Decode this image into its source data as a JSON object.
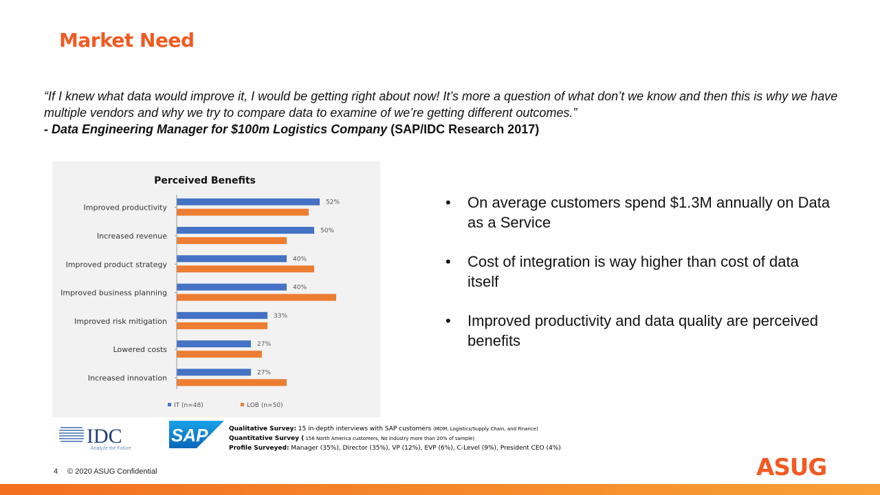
{
  "slide": {
    "title": "Market Need",
    "quote_text": "“If I knew what data would improve it, I would be getting right about now!  It’s more a question of what don’t we know and then this is why we have multiple vendors and why we try to compare data to examine of we’re getting different outcomes.”",
    "attribution_role": "- Data Engineering Manager for $100m Logistics Company",
    "attribution_source": " (SAP/IDC Research 2017)",
    "bullets": [
      "On average customers spend $1.3M annually on Data as a Service",
      "Cost of integration is way higher than cost of data itself",
      "Improved productivity and data quality are perceived benefits"
    ],
    "survey": {
      "qual_label": "Qualitative Survey:",
      "qual_text": " 15 in-depth interviews with SAP customers ",
      "qual_small": "(MDM, Logistics/Supply Chain, and Finance)",
      "quant_label": "Quantitative Survey (",
      "quant_small": " 156 North America  customers, No industry more than 20% of sample)",
      "profile_label": "Profile Surveyed:",
      "profile_text": " Manager (35%), Director (35%), VP (12%),  EVP (6%),  C-Level (9%),  President CEO (4%)"
    },
    "logos": {
      "idc_text": "IDC",
      "idc_tagline": "Analyze the Future",
      "sap_text": "SAP",
      "asug_text": "ASUG"
    },
    "footer": {
      "page": "4",
      "text": "© 2020 ASUG  Confidential"
    },
    "colors": {
      "accent": "#f15a22",
      "it_series": "#4472c4",
      "lob_series": "#ed7d31"
    }
  },
  "chart_data": {
    "type": "bar",
    "orientation": "horizontal",
    "title": "Perceived Benefits",
    "categories": [
      "Improved productivity",
      "Increased revenue",
      "Improved product strategy",
      "Improved business planning",
      "Improved risk mitigation",
      "Lowered costs",
      "Increased innovation"
    ],
    "series": [
      {
        "name": "IT (n=48)",
        "values": [
          52,
          50,
          40,
          40,
          33,
          27,
          27
        ],
        "color": "#4472c4",
        "labels": [
          "52%",
          "50%",
          "40%",
          "40%",
          "33%",
          "27%",
          "27%"
        ]
      },
      {
        "name": "LOB (n=50)",
        "values": [
          48,
          40,
          50,
          58,
          33,
          31,
          40
        ],
        "color": "#ed7d31"
      }
    ],
    "xlim": [
      0,
      100
    ],
    "legend": "bottom",
    "grid": false
  }
}
